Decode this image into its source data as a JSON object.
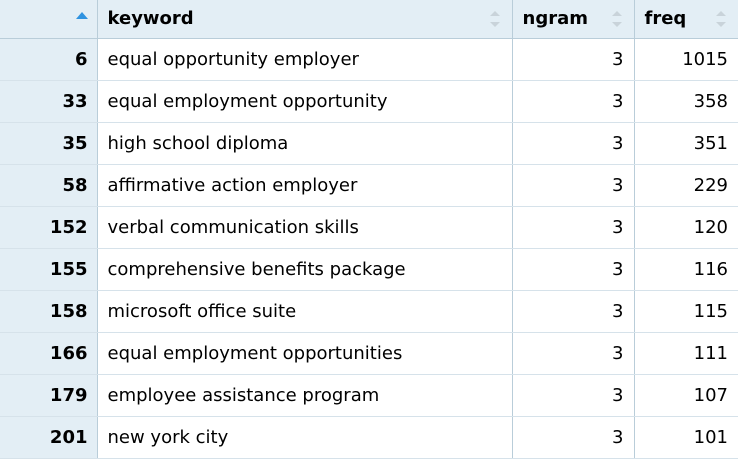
{
  "table": {
    "columns": [
      {
        "key": "rowname",
        "label": ""
      },
      {
        "key": "keyword",
        "label": "keyword"
      },
      {
        "key": "ngram",
        "label": "ngram"
      },
      {
        "key": "freq",
        "label": "freq"
      }
    ],
    "sort": {
      "column": "rowname",
      "direction": "ascending"
    },
    "rows": [
      {
        "rowname": "6",
        "keyword": "equal opportunity employer",
        "ngram": "3",
        "freq": "1015"
      },
      {
        "rowname": "33",
        "keyword": "equal employment opportunity",
        "ngram": "3",
        "freq": "358"
      },
      {
        "rowname": "35",
        "keyword": "high school diploma",
        "ngram": "3",
        "freq": "351"
      },
      {
        "rowname": "58",
        "keyword": "affirmative action employer",
        "ngram": "3",
        "freq": "229"
      },
      {
        "rowname": "152",
        "keyword": "verbal communication skills",
        "ngram": "3",
        "freq": "120"
      },
      {
        "rowname": "155",
        "keyword": "comprehensive benefits package",
        "ngram": "3",
        "freq": "116"
      },
      {
        "rowname": "158",
        "keyword": "microsoft office suite",
        "ngram": "3",
        "freq": "115"
      },
      {
        "rowname": "166",
        "keyword": "equal employment opportunities",
        "ngram": "3",
        "freq": "111"
      },
      {
        "rowname": "179",
        "keyword": "employee assistance program",
        "ngram": "3",
        "freq": "107"
      },
      {
        "rowname": "201",
        "keyword": "new york city",
        "ngram": "3",
        "freq": "101"
      }
    ]
  },
  "colors": {
    "header_bg": "#e3eef5",
    "border": "#b9cdd9",
    "sort_active": "#2f93e0",
    "sort_inactive": "#c9d3da"
  }
}
